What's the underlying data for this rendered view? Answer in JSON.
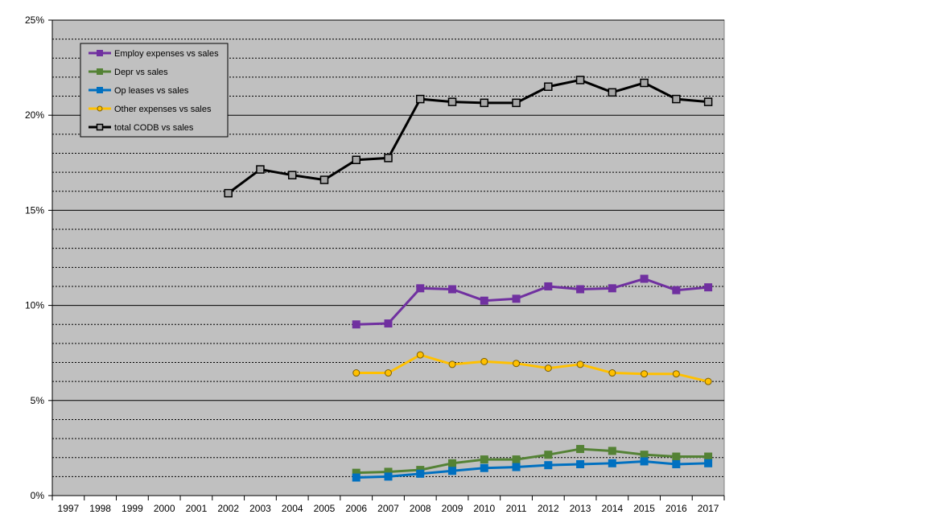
{
  "chart_data": {
    "type": "line",
    "title": "",
    "xlabel": "",
    "ylabel": "",
    "x": [
      "1997",
      "1998",
      "1999",
      "2000",
      "2001",
      "2002",
      "2003",
      "2004",
      "2005",
      "2006",
      "2007",
      "2008",
      "2009",
      "2010",
      "2011",
      "2012",
      "2013",
      "2014",
      "2015",
      "2016",
      "2017"
    ],
    "ylim": [
      0,
      25
    ],
    "yticks": [
      "0%",
      "5%",
      "10%",
      "15%",
      "20%",
      "25%"
    ],
    "grid": "horizontal, solid major every 5%, dashed minor every 1%",
    "legend_position": "top-left",
    "plot_background": "#c0c0c0",
    "series": [
      {
        "name": "Employ expenses vs sales",
        "color": "#7030a0",
        "marker": "square",
        "values": [
          null,
          null,
          null,
          null,
          null,
          null,
          null,
          null,
          null,
          9.0,
          9.05,
          10.9,
          10.85,
          10.25,
          10.35,
          11.0,
          10.85,
          10.9,
          11.4,
          10.8,
          10.95
        ]
      },
      {
        "name": "Depr vs sales",
        "color": "#548235",
        "marker": "square",
        "values": [
          null,
          null,
          null,
          null,
          null,
          null,
          null,
          null,
          null,
          1.2,
          1.25,
          1.35,
          1.7,
          1.9,
          1.9,
          2.15,
          2.45,
          2.35,
          2.15,
          2.05,
          2.05
        ]
      },
      {
        "name": "Op leases vs sales",
        "color": "#0070c0",
        "marker": "square",
        "values": [
          null,
          null,
          null,
          null,
          null,
          null,
          null,
          null,
          null,
          0.95,
          1.0,
          1.15,
          1.3,
          1.45,
          1.5,
          1.6,
          1.65,
          1.7,
          1.8,
          1.65,
          1.7
        ]
      },
      {
        "name": "Other expenses vs sales",
        "color": "#ffc000",
        "marker": "circle",
        "values": [
          null,
          null,
          null,
          null,
          null,
          null,
          null,
          null,
          null,
          6.45,
          6.45,
          7.4,
          6.9,
          7.05,
          6.95,
          6.7,
          6.9,
          6.45,
          6.4,
          6.4,
          6.0
        ]
      },
      {
        "name": "total CODB vs sales",
        "color": "#000000",
        "marker": "square-gray",
        "values": [
          null,
          null,
          null,
          null,
          null,
          15.9,
          17.15,
          16.85,
          16.6,
          17.65,
          17.75,
          20.85,
          20.7,
          20.65,
          20.65,
          21.5,
          21.85,
          21.2,
          21.7,
          20.85,
          20.7
        ]
      }
    ]
  }
}
